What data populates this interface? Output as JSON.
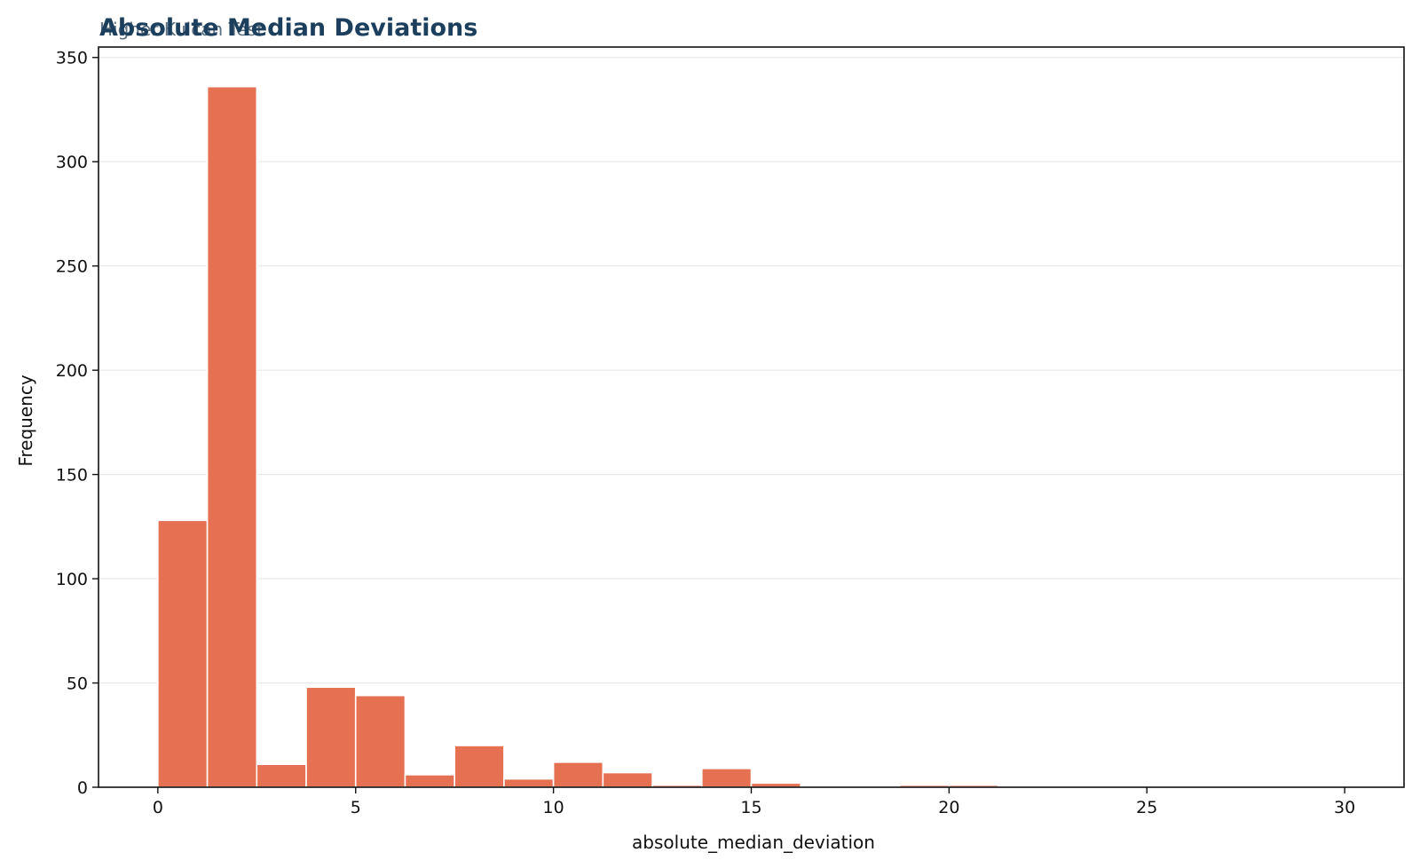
{
  "chart_data": {
    "type": "bar",
    "title": "Absolute Median Deviations",
    "subtitle": "Higher Kulcan Test",
    "xlabel": "absolute_median_deviation",
    "ylabel": "Frequency",
    "xlim": [
      -1.5,
      31.5
    ],
    "ylim": [
      0,
      355
    ],
    "xticks": [
      0,
      5,
      10,
      15,
      20,
      25,
      30
    ],
    "yticks": [
      0,
      50,
      100,
      150,
      200,
      250,
      300,
      350
    ],
    "grid": "y",
    "bar_color": "#e67052",
    "bins": [
      {
        "start": 0.0,
        "end": 1.25,
        "count": 128
      },
      {
        "start": 1.25,
        "end": 2.5,
        "count": 336
      },
      {
        "start": 2.5,
        "end": 3.75,
        "count": 11
      },
      {
        "start": 3.75,
        "end": 5.0,
        "count": 48
      },
      {
        "start": 5.0,
        "end": 6.25,
        "count": 44
      },
      {
        "start": 6.25,
        "end": 7.5,
        "count": 6
      },
      {
        "start": 7.5,
        "end": 8.75,
        "count": 20
      },
      {
        "start": 8.75,
        "end": 10.0,
        "count": 4
      },
      {
        "start": 10.0,
        "end": 11.25,
        "count": 12
      },
      {
        "start": 11.25,
        "end": 12.5,
        "count": 7
      },
      {
        "start": 12.5,
        "end": 13.75,
        "count": 1
      },
      {
        "start": 13.75,
        "end": 15.0,
        "count": 9
      },
      {
        "start": 15.0,
        "end": 16.25,
        "count": 2
      },
      {
        "start": 16.25,
        "end": 17.5,
        "count": 0
      },
      {
        "start": 17.5,
        "end": 18.75,
        "count": 0
      },
      {
        "start": 18.75,
        "end": 20.0,
        "count": 1
      },
      {
        "start": 20.0,
        "end": 21.25,
        "count": 1
      },
      {
        "start": 21.25,
        "end": 22.5,
        "count": 0
      },
      {
        "start": 22.5,
        "end": 23.75,
        "count": 0
      },
      {
        "start": 23.75,
        "end": 25.0,
        "count": 0
      },
      {
        "start": 25.0,
        "end": 26.25,
        "count": 0
      },
      {
        "start": 26.25,
        "end": 27.5,
        "count": 0
      },
      {
        "start": 27.5,
        "end": 28.75,
        "count": 0
      },
      {
        "start": 28.75,
        "end": 30.0,
        "count": 0
      }
    ]
  }
}
